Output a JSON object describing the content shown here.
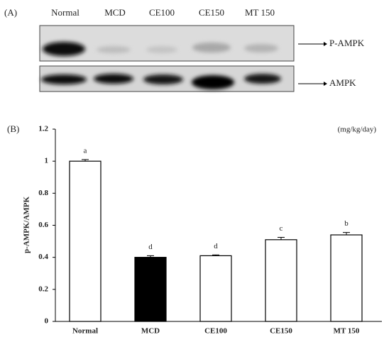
{
  "panel_a": {
    "label": "(A)",
    "lanes": [
      "Normal",
      "MCD",
      "CE100",
      "CE150",
      "MT 150"
    ],
    "bands": [
      "P-AMPK",
      "AMPK"
    ]
  },
  "chart_data": {
    "type": "bar",
    "panel_label": "(B)",
    "unit_note": "(mg/kg/day)",
    "ylabel": "p-AMPK/AMPK",
    "categories": [
      "Normal",
      "MCD",
      "CE100",
      "CE150",
      "MT 150"
    ],
    "values": [
      1.0,
      0.4,
      0.41,
      0.51,
      0.54
    ],
    "errors": [
      0.01,
      0.01,
      0.005,
      0.015,
      0.015
    ],
    "significance": [
      "a",
      "d",
      "d",
      "c",
      "b"
    ],
    "colors": [
      "#ffffff",
      "#000000",
      "#ffffff",
      "#ffffff",
      "#ffffff"
    ],
    "ylim": [
      0,
      1.2
    ],
    "yticks": [
      0,
      0.2,
      0.4,
      0.6,
      0.8,
      1,
      1.2
    ]
  }
}
